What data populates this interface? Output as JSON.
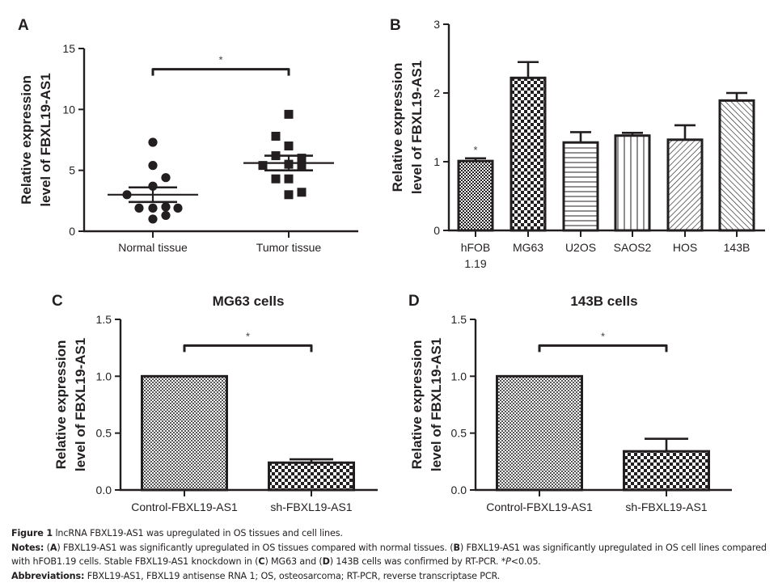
{
  "figure": {
    "caption": {
      "figure_label": "Figure 1",
      "title": "lncRNA FBXL19-AS1 was upregulated in OS tissues and cell lines.",
      "notes_label": "Notes:",
      "notes_line1_parts": [
        "(",
        "A",
        ") FBXL19-AS1 was significantly upregulated in OS tissues compared with normal tissues. (",
        "B",
        ") FBXL19-AS1 was significantly upregulated in OS cell lines compared"
      ],
      "notes_line2_parts": [
        "with hFOB1.19 cells. Stable FBXL19-AS1 knockdown in (",
        "C",
        ") MG63 and (",
        "D",
        ") 143B cells was confirmed by RT-PCR. *",
        "P",
        "<0.05."
      ],
      "abbreviations_label": "Abbreviations:",
      "abbreviations_text": "FBXL19-AS1, FBXL19 antisense RNA 1; OS, osteosarcoma; RT-PCR, reverse transcriptase PCR."
    }
  },
  "chart_data": [
    {
      "panel": "A",
      "type": "scatter",
      "title": "",
      "xlabel": "",
      "ylabel": "Relative expression level of FBXL19-AS1",
      "ylabel_lines": [
        "Relative expression",
        "level of FBXL19-AS1"
      ],
      "ylim": [
        0,
        15
      ],
      "yticks": [
        0,
        5,
        10,
        15
      ],
      "categories": [
        "Normal tissue",
        "Tumor tissue"
      ],
      "series": [
        {
          "name": "Normal tissue",
          "marker": "circle",
          "values": [
            7.3,
            5.4,
            4.4,
            3.7,
            3.0,
            1.9,
            1.9,
            2.0,
            1.9,
            1.0,
            1.3
          ],
          "mean": 3.0,
          "sem_upper": 3.6,
          "sem_lower": 2.4
        },
        {
          "name": "Tumor tissue",
          "marker": "square",
          "values": [
            9.6,
            7.8,
            7.0,
            6.2,
            6.0,
            5.4,
            5.5,
            5.4,
            4.3,
            4.3,
            3.0,
            3.2
          ],
          "mean": 5.6,
          "sem_upper": 6.2,
          "sem_lower": 5.0
        }
      ],
      "significance": {
        "between": [
          "Normal tissue",
          "Tumor tissue"
        ],
        "label": "*",
        "y": 13.3
      },
      "grid": false
    },
    {
      "panel": "B",
      "type": "bar",
      "title": "",
      "xlabel": "",
      "ylabel": "Relative expression level of FBXL19-AS1",
      "ylabel_lines": [
        "Relative expression",
        "level of FBXL19-AS1"
      ],
      "ylim": [
        0,
        3
      ],
      "yticks": [
        0,
        1,
        2,
        3
      ],
      "categories": [
        "hFOB 1.19",
        "MG63",
        "U2OS",
        "SAOS2",
        "HOS",
        "143B"
      ],
      "category_lines": [
        [
          "hFOB",
          "1.19"
        ],
        [
          "MG63"
        ],
        [
          "U2OS"
        ],
        [
          "SAOS2"
        ],
        [
          "HOS"
        ],
        [
          "143B"
        ]
      ],
      "values": [
        1.01,
        2.22,
        1.28,
        1.38,
        1.32,
        1.89
      ],
      "error_upper": [
        1.05,
        2.45,
        1.43,
        1.42,
        1.53,
        2.0
      ],
      "patterns": [
        "fine-check",
        "coarse-check",
        "horizontal-lines",
        "vertical-lines",
        "diagonal-lines",
        "diagonal-lines-reverse"
      ],
      "annotations": [
        {
          "category": "hFOB 1.19",
          "label": "*"
        }
      ],
      "grid": false
    },
    {
      "panel": "C",
      "type": "bar",
      "title": "MG63 cells",
      "xlabel": "",
      "ylabel": "Relative expression level of FBXL19-AS1",
      "ylabel_lines": [
        "Relative expression",
        "level of FBXL19-AS1"
      ],
      "ylim": [
        0,
        1.5
      ],
      "yticks": [
        "0.0",
        "0.5",
        "1.0",
        "1.5"
      ],
      "categories": [
        "Control-FBXL19-AS1",
        "sh-FBXL19-AS1"
      ],
      "values": [
        1.0,
        0.24
      ],
      "error_upper": [
        1.0,
        0.27
      ],
      "patterns": [
        "fine-check",
        "coarse-check"
      ],
      "significance": {
        "between": [
          "Control-FBXL19-AS1",
          "sh-FBXL19-AS1"
        ],
        "label": "*",
        "y": 1.27
      },
      "grid": false
    },
    {
      "panel": "D",
      "type": "bar",
      "title": "143B cells",
      "xlabel": "",
      "ylabel": "Relative expression level of FBXL19-AS1",
      "ylabel_lines": [
        "Relative expression",
        "level of FBXL19-AS1"
      ],
      "ylim": [
        0,
        1.5
      ],
      "yticks": [
        "0.0",
        "0.5",
        "1.0",
        "1.5"
      ],
      "categories": [
        "Control-FBXL19-AS1",
        "sh-FBXL19-AS1"
      ],
      "values": [
        1.0,
        0.34
      ],
      "error_upper": [
        1.0,
        0.45
      ],
      "patterns": [
        "fine-check",
        "coarse-check"
      ],
      "significance": {
        "between": [
          "Control-FBXL19-AS1",
          "sh-FBXL19-AS1"
        ],
        "label": "*",
        "y": 1.27
      },
      "grid": false
    }
  ],
  "colors": {
    "ink": "#231f20",
    "background": "#ffffff"
  }
}
